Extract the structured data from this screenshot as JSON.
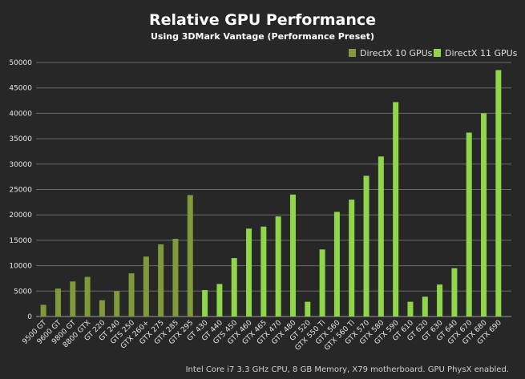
{
  "chart_data": {
    "type": "bar",
    "title": "Relative GPU Performance",
    "subtitle": "Using 3DMark Vantage (Performance Preset)",
    "xlabel": "",
    "ylabel": "",
    "ylim": [
      0,
      50000
    ],
    "yticks": [
      0,
      5000,
      10000,
      15000,
      20000,
      25000,
      30000,
      35000,
      40000,
      45000,
      50000
    ],
    "grid": true,
    "legend_position": "top-right",
    "colors": {
      "dx10": "#7f9a3a",
      "dx11": "#8fd64a"
    },
    "series": [
      {
        "name": "DirectX 10 GPUs",
        "categories": [
          "9500 GT",
          "9600 GT",
          "9800 GT",
          "8800 GTX",
          "GT 220",
          "GT 240",
          "GTS 250",
          "GTX 260+",
          "GTX 275",
          "GTX 285",
          "GTX 295"
        ],
        "values": [
          2300,
          5500,
          6900,
          7800,
          3200,
          5000,
          8500,
          11800,
          14200,
          15300,
          23900
        ]
      },
      {
        "name": "DirectX 11 GPUs",
        "categories": [
          "GT 430",
          "GT 440",
          "GTS 450",
          "GTX 460",
          "GTX 465",
          "GTX 470",
          "GTX 480",
          "GT 520",
          "GTX 550 Ti",
          "GTX 560",
          "GTX 560 Ti",
          "GTX 570",
          "GTX 580",
          "GTX 590",
          "GT 610",
          "GT 620",
          "GT 630",
          "GT 640",
          "GTX 670",
          "GTX 680",
          "GTX 690"
        ],
        "values": [
          5200,
          6400,
          11500,
          17300,
          17700,
          19700,
          24000,
          2900,
          13200,
          20600,
          23000,
          27700,
          31500,
          42200,
          2900,
          3900,
          6300,
          9500,
          36200,
          40000,
          48500
        ]
      }
    ]
  },
  "footnote": "Intel Core i7 3.3 GHz CPU, 8 GB Memory, X79 motherboard. GPU PhysX enabled."
}
